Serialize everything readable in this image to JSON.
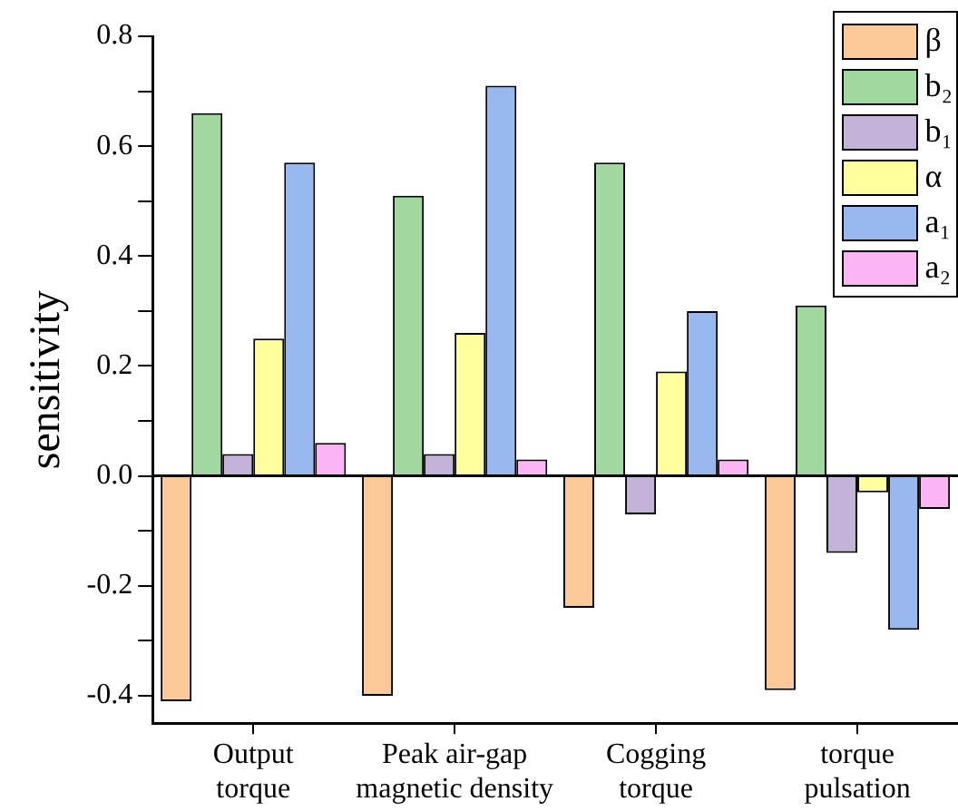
{
  "chart_data": {
    "type": "bar",
    "ylabel": "sensitivity",
    "categories": [
      "Output torque",
      "Peak air-gap magnetic density",
      "Cogging torque",
      "torque pulsation"
    ],
    "series": [
      {
        "name": "β",
        "color": "#fbc898",
        "values": [
          -0.41,
          -0.4,
          -0.24,
          -0.39
        ]
      },
      {
        "name": "b₂",
        "color": "#a0d8a0",
        "values": [
          0.66,
          0.51,
          0.57,
          0.31
        ]
      },
      {
        "name": "b₁",
        "color": "#c4b3d8",
        "values": [
          0.04,
          0.04,
          -0.07,
          -0.14
        ]
      },
      {
        "name": "α",
        "color": "#ffff9e",
        "values": [
          0.25,
          0.26,
          0.19,
          -0.03
        ]
      },
      {
        "name": "a₁",
        "color": "#9ab8f0",
        "values": [
          0.57,
          0.71,
          0.3,
          -0.28
        ]
      },
      {
        "name": "a₂",
        "color": "#fbb5f5",
        "values": [
          0.06,
          0.03,
          0.03,
          -0.06
        ]
      }
    ],
    "ylim": [
      -0.45,
      0.8
    ],
    "yticks": [
      -0.4,
      {
        "value": -0.3,
        "label": null
      },
      -0.2,
      {
        "value": -0.1,
        "label": null
      },
      {
        "value": 0,
        "label": "0.0"
      },
      {
        "value": 0.1,
        "label": null
      },
      0.2,
      {
        "value": 0.3,
        "label": null
      },
      0.4,
      {
        "value": 0.5,
        "label": null
      },
      0.6,
      {
        "value": 0.7,
        "label": null
      },
      0.8
    ],
    "legend": "top right"
  }
}
